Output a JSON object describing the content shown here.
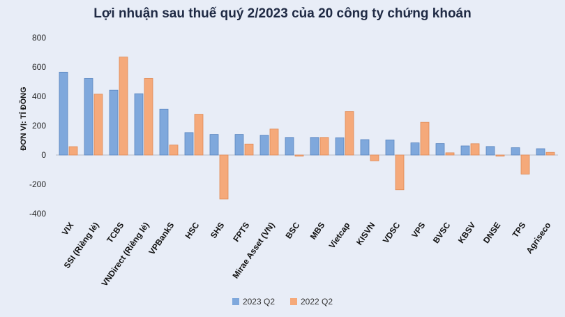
{
  "chart_data": {
    "type": "bar",
    "title": "Lợi nhuận sau thuế quý 2/2023 của 20 công ty chứng khoán",
    "ylabel": "ĐƠN VỊ: TỈ ĐỒNG",
    "xlabel": "",
    "ylim": [
      -400,
      800
    ],
    "yticks": [
      -400,
      -200,
      0,
      200,
      400,
      600,
      800
    ],
    "grid": false,
    "legend_position": "bottom",
    "categories": [
      "VIX",
      "SSI (Riêng lẻ)",
      "TCBS",
      "VNDirect (Riêng lẻ)",
      "VPBankS",
      "HSC",
      "SHS",
      "FPTS",
      "Mirae Asset (VN)",
      "BSC",
      "MBS",
      "Vietcap",
      "KISVN",
      "VDSC",
      "VPS",
      "BVSC",
      "KBSV",
      "DNSE",
      "TPS",
      "Agriseco"
    ],
    "series": [
      {
        "name": "2023 Q2",
        "color": "#7fa8dc",
        "values": [
          565,
          522,
          442,
          418,
          313,
          153,
          140,
          140,
          135,
          120,
          120,
          118,
          105,
          103,
          83,
          78,
          62,
          58,
          50,
          43
        ]
      },
      {
        "name": "2022 Q2",
        "color": "#f5a97a",
        "values": [
          57,
          415,
          668,
          522,
          68,
          278,
          -300,
          75,
          177,
          -8,
          120,
          297,
          -40,
          -237,
          223,
          15,
          77,
          -8,
          -130,
          18
        ]
      }
    ]
  }
}
